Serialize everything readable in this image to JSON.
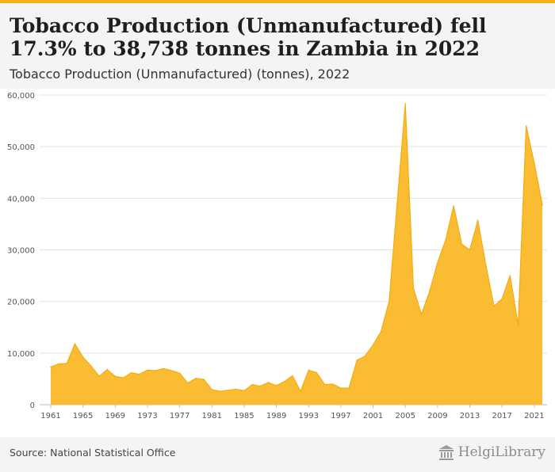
{
  "header": {
    "title": "Tobacco Production (Unmanufactured) fell 17.3% to 38,738 tonnes in Zambia in 2022",
    "subtitle": "Tobacco Production (Unmanufactured) (tonnes), 2022"
  },
  "footer": {
    "source": "Source: National Statistical Office",
    "brand": "HelgiLibrary"
  },
  "chart_data": {
    "type": "area",
    "title": "Tobacco Production (Unmanufactured) fell 17.3% to 38,738 tonnes in Zambia in 2022",
    "subtitle": "Tobacco Production (Unmanufactured) (tonnes), 2022",
    "xlabel": "",
    "ylabel": "",
    "ylim": [
      0,
      60000
    ],
    "yticks": [
      0,
      10000,
      20000,
      30000,
      40000,
      50000,
      60000
    ],
    "ytick_labels": [
      "0",
      "10,000",
      "20,000",
      "30,000",
      "40,000",
      "50,000",
      "60,000"
    ],
    "xticks": [
      1961,
      1965,
      1969,
      1973,
      1977,
      1981,
      1985,
      1989,
      1993,
      1997,
      2001,
      2005,
      2009,
      2013,
      2017,
      2021
    ],
    "grid": true,
    "legend": "none",
    "colors": {
      "fill": "#f9bc33",
      "stroke": "#f5ab10",
      "grid": "#e3e3e3",
      "axis_text": "#555555"
    },
    "x": [
      1961,
      1962,
      1963,
      1964,
      1965,
      1966,
      1967,
      1968,
      1969,
      1970,
      1971,
      1972,
      1973,
      1974,
      1975,
      1976,
      1977,
      1978,
      1979,
      1980,
      1981,
      1982,
      1983,
      1984,
      1985,
      1986,
      1987,
      1988,
      1989,
      1990,
      1991,
      1992,
      1993,
      1994,
      1995,
      1996,
      1997,
      1998,
      1999,
      2000,
      2001,
      2002,
      2003,
      2004,
      2005,
      2006,
      2007,
      2008,
      2009,
      2010,
      2011,
      2012,
      2013,
      2014,
      2015,
      2016,
      2017,
      2018,
      2019,
      2020,
      2021,
      2022
    ],
    "series": [
      {
        "values": [
          7300,
          7900,
          8000,
          11800,
          9200,
          7500,
          5500,
          6800,
          5500,
          5200,
          6200,
          5900,
          6700,
          6600,
          7000,
          6600,
          6100,
          4200,
          5100,
          4900,
          2900,
          2600,
          2800,
          3000,
          2700,
          3900,
          3600,
          4300,
          3700,
          4500,
          5600,
          2600,
          6700,
          6200,
          3900,
          4000,
          3200,
          3200,
          8600,
          9400,
          11600,
          14200,
          20100,
          39300,
          58300,
          22600,
          17500,
          21900,
          27500,
          31900,
          38500,
          31100,
          30000,
          35700,
          27000,
          19100,
          20500,
          25000,
          15500,
          54000,
          46800,
          38738
        ]
      }
    ]
  }
}
